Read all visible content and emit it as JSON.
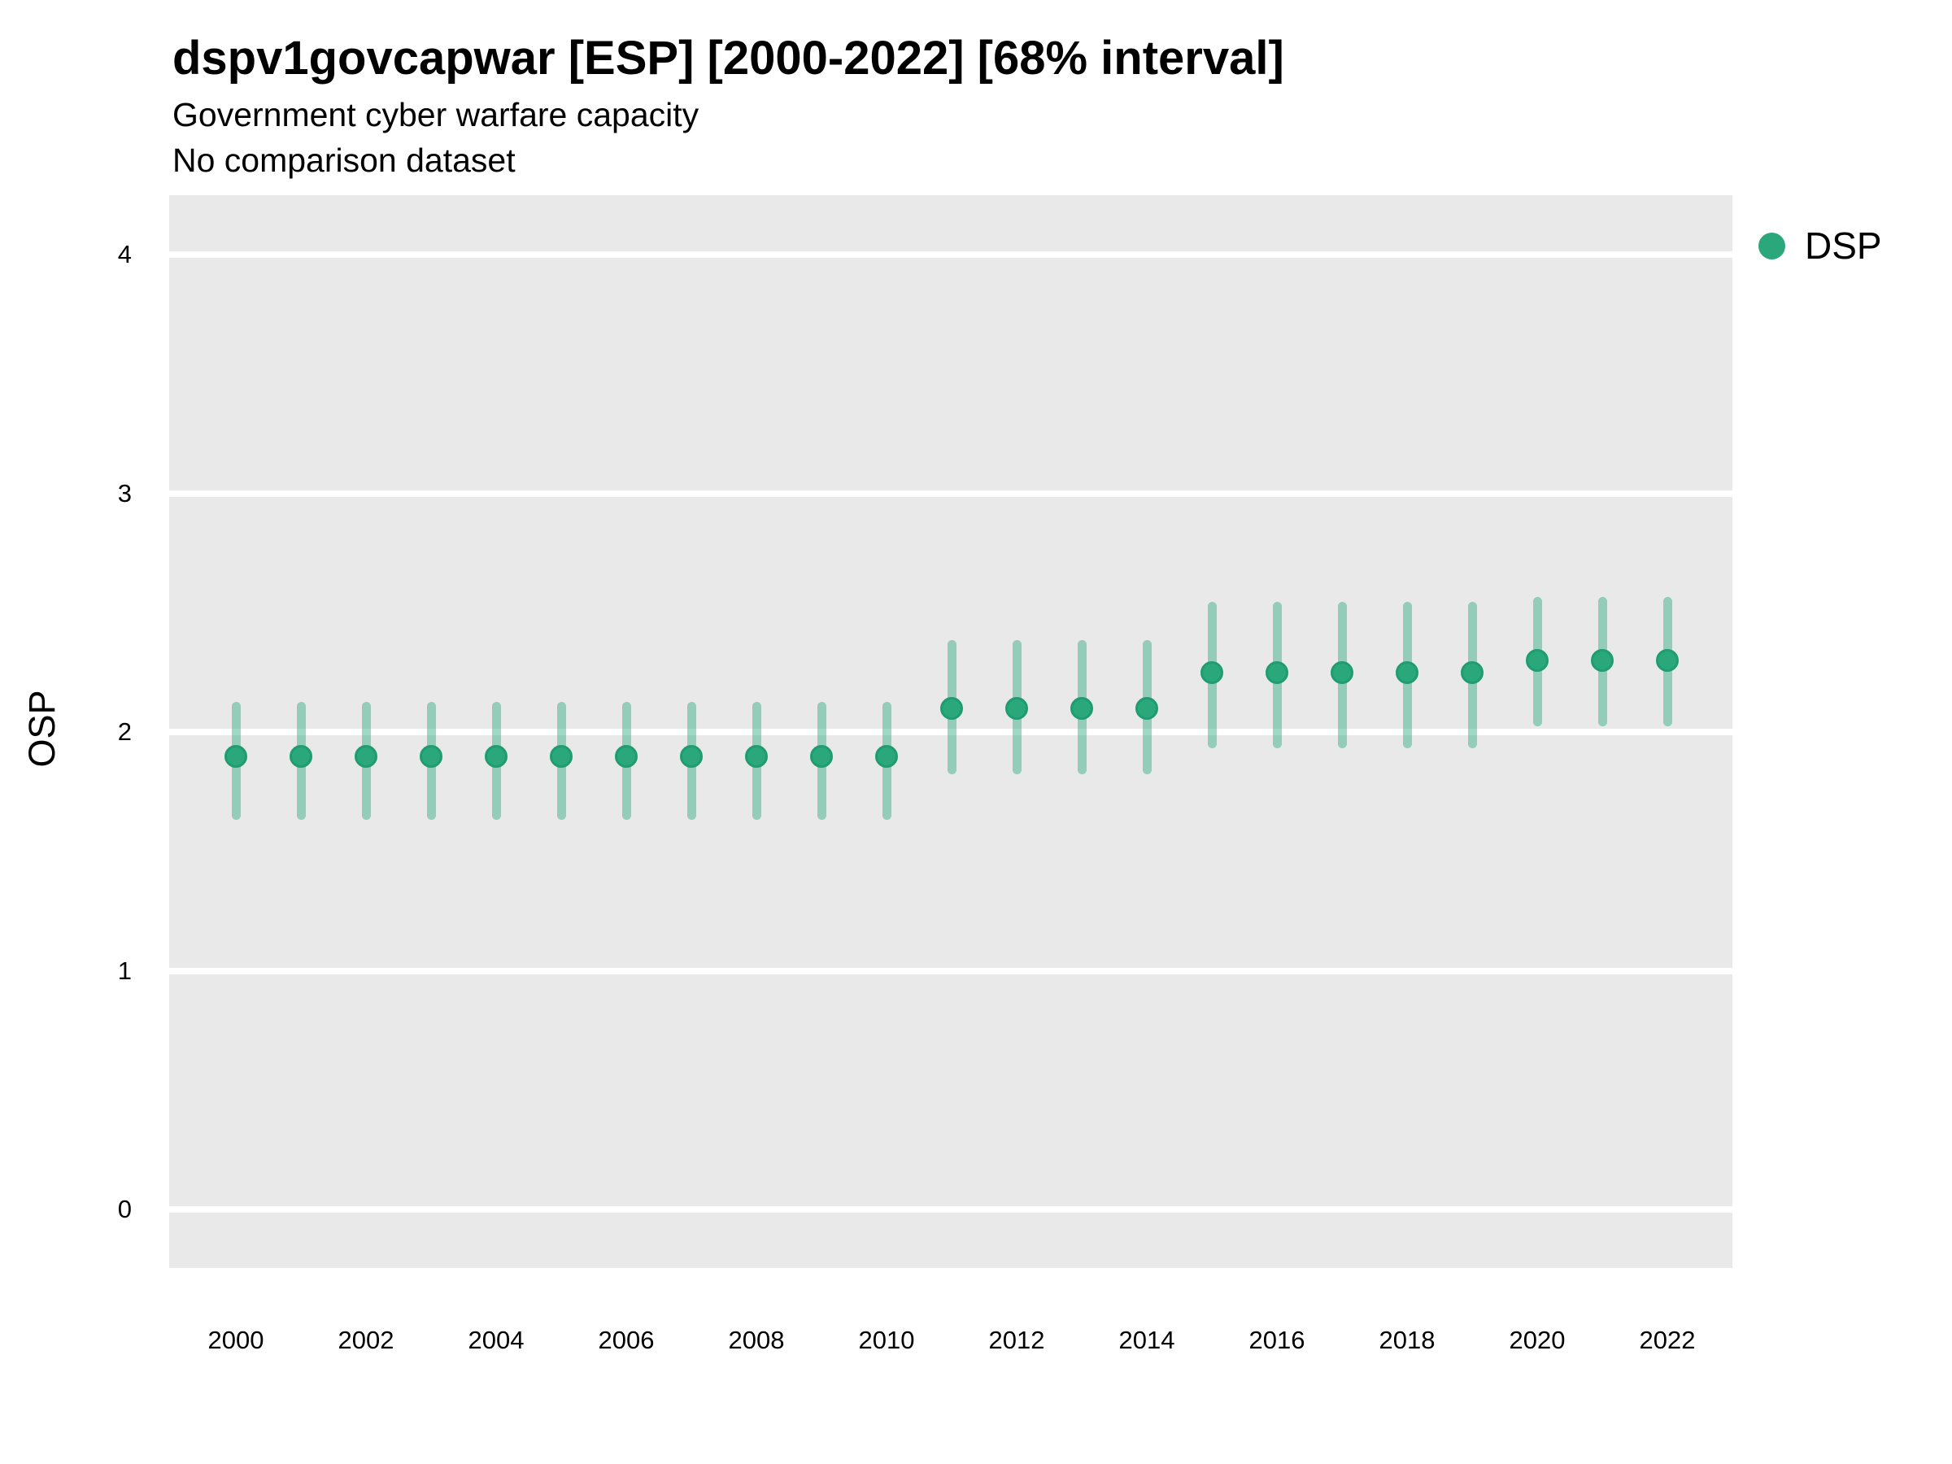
{
  "header": {
    "title": "dspv1govcapwar [ESP] [2000-2022] [68% interval]",
    "subtitle": "Government cyber warfare capacity",
    "note": "No comparison dataset"
  },
  "legend": {
    "items": [
      {
        "label": "DSP",
        "color": "#2aa87c"
      }
    ],
    "position": "right-top"
  },
  "chart_data": {
    "type": "scatter",
    "title": "dspv1govcapwar [ESP] [2000-2022] [68% interval]",
    "subtitle": "Government cyber warfare capacity",
    "note": "No comparison dataset",
    "xlabel": "",
    "ylabel": "OSP",
    "x": [
      2000,
      2001,
      2002,
      2003,
      2004,
      2005,
      2006,
      2007,
      2008,
      2009,
      2010,
      2011,
      2012,
      2013,
      2014,
      2015,
      2016,
      2017,
      2018,
      2019,
      2020,
      2021,
      2022
    ],
    "series": [
      {
        "name": "DSP",
        "estimates": [
          1.9,
          1.9,
          1.9,
          1.9,
          1.9,
          1.9,
          1.9,
          1.9,
          1.9,
          1.9,
          1.9,
          2.1,
          2.1,
          2.1,
          2.1,
          2.25,
          2.25,
          2.25,
          2.25,
          2.25,
          2.3,
          2.3,
          2.3
        ],
        "lower": [
          1.65,
          1.65,
          1.65,
          1.65,
          1.65,
          1.65,
          1.65,
          1.65,
          1.65,
          1.65,
          1.65,
          1.84,
          1.84,
          1.84,
          1.84,
          1.95,
          1.95,
          1.95,
          1.95,
          1.95,
          2.04,
          2.04,
          2.04
        ],
        "upper": [
          2.11,
          2.11,
          2.11,
          2.11,
          2.11,
          2.11,
          2.11,
          2.11,
          2.11,
          2.11,
          2.11,
          2.37,
          2.37,
          2.37,
          2.37,
          2.53,
          2.53,
          2.53,
          2.53,
          2.53,
          2.55,
          2.55,
          2.55
        ]
      }
    ],
    "interval_level": "68%",
    "x_ticks": [
      2000,
      2002,
      2004,
      2006,
      2008,
      2010,
      2012,
      2014,
      2016,
      2018,
      2020,
      2022
    ],
    "y_ticks": [
      0,
      1,
      2,
      3,
      4
    ],
    "xlim": [
      1998.975,
      2023.0
    ],
    "ylim": [
      -0.245,
      4.25
    ],
    "grid": "major-horizontal-white",
    "legend_position": "right-top",
    "colors": {
      "point_fill": "#2aa87c",
      "point_ring": "#1f9c70",
      "interval": "rgba(42, 168, 124, 0.45)",
      "panel_bg": "#e9e9e9",
      "grid": "#ffffff",
      "text": "#000000"
    }
  }
}
